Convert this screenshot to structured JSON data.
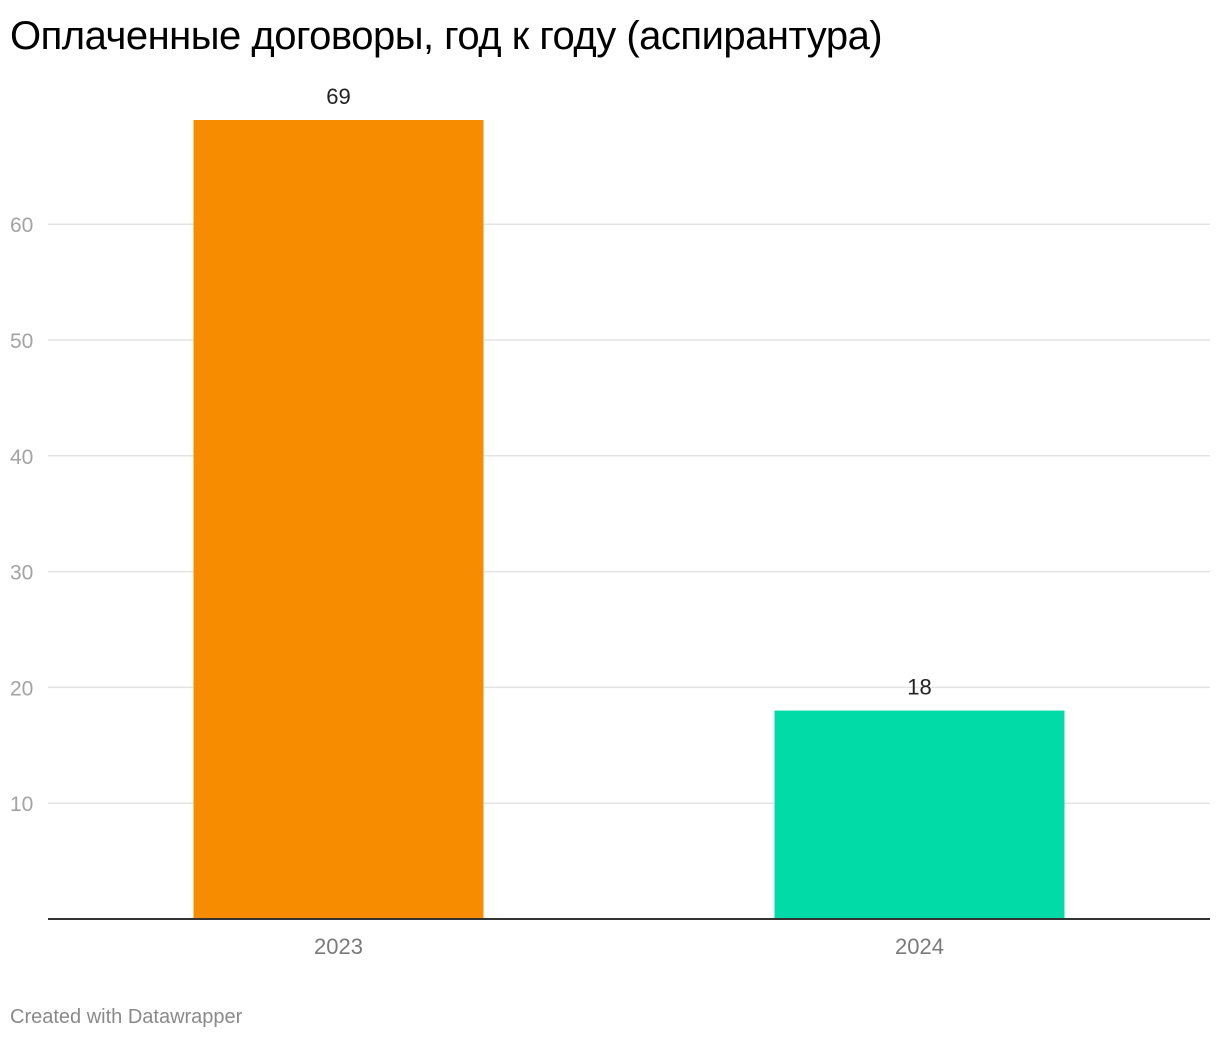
{
  "title": "Оплаченные договоры, год к году (аспирантура)",
  "footer": "Created with Datawrapper",
  "chart_data": {
    "type": "bar",
    "title": "Оплаченные договоры, год к году (аспирантура)",
    "xlabel": "",
    "ylabel": "",
    "categories": [
      "2023",
      "2024"
    ],
    "values": [
      69,
      18
    ],
    "bar_colors": [
      "#f78c00",
      "#00dba8"
    ],
    "ylim": [
      0,
      69
    ],
    "yticks": [
      10,
      20,
      30,
      40,
      50,
      60
    ],
    "grid": true,
    "legend": "none",
    "data_labels": true
  },
  "colors": {
    "gridline": "#e3e3e3",
    "baseline": "#333333"
  }
}
